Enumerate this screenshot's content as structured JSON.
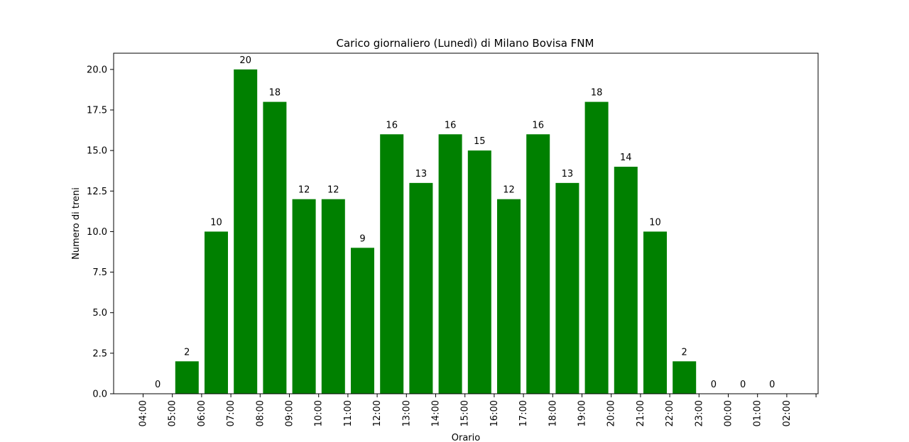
{
  "chart_data": {
    "type": "bar",
    "title": "Carico giornaliero (Lunedì) di Milano Bovisa FNM",
    "xlabel": "Orario",
    "ylabel": "Numero di treni",
    "categories": [
      "04:00",
      "05:00",
      "06:00",
      "07:00",
      "08:00",
      "09:00",
      "10:00",
      "11:00",
      "12:00",
      "13:00",
      "14:00",
      "15:00",
      "16:00",
      "17:00",
      "18:00",
      "19:00",
      "20:00",
      "21:00",
      "22:00",
      "23:00",
      "00:00",
      "01:00",
      "02:00"
    ],
    "values": [
      0,
      2,
      10,
      20,
      18,
      12,
      12,
      9,
      16,
      13,
      16,
      15,
      12,
      16,
      13,
      18,
      14,
      10,
      2,
      0,
      0,
      0,
      null
    ],
    "data_labels": [
      "0",
      "2",
      "10",
      "20",
      "18",
      "12",
      "12",
      "9",
      "16",
      "13",
      "16",
      "15",
      "12",
      "16",
      "13",
      "18",
      "14",
      "10",
      "2",
      "0",
      "0",
      "0",
      ""
    ],
    "yticks": [
      "0.0",
      "2.5",
      "5.0",
      "7.5",
      "10.0",
      "12.5",
      "15.0",
      "17.5",
      "20.0"
    ],
    "ylim": [
      0,
      21
    ],
    "bar_color": "#008000",
    "grid": false,
    "legend": "none"
  }
}
